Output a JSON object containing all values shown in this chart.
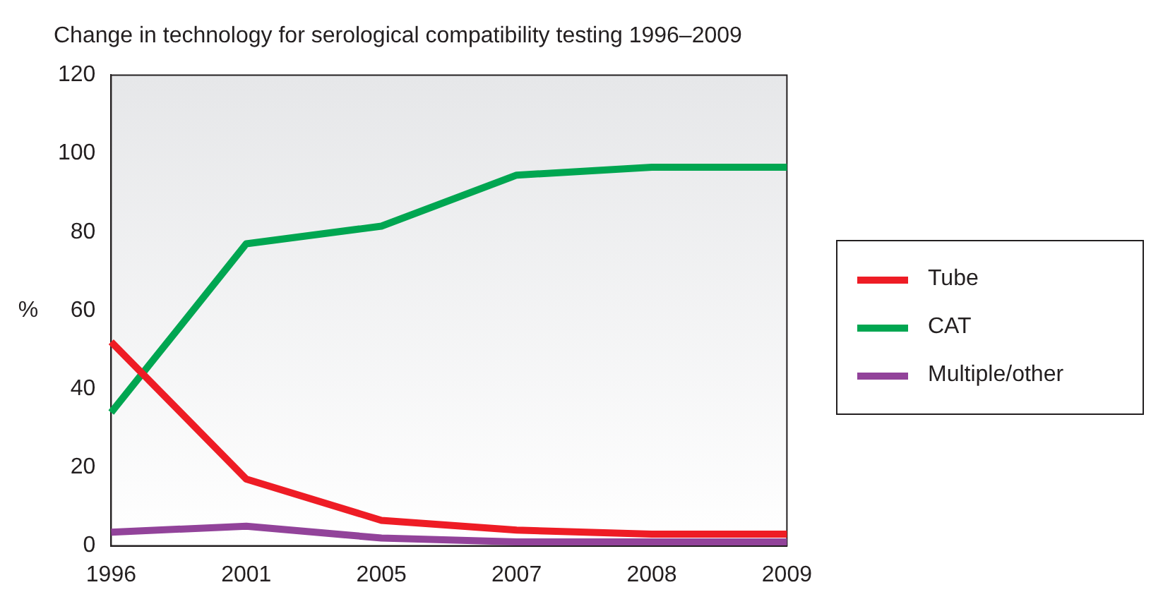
{
  "chart_data": {
    "type": "line",
    "title": "Change in technology for serological compatibility testing 1996–2009",
    "ylabel": "%",
    "categories": [
      "1996",
      "2001",
      "2005",
      "2007",
      "2008",
      "2009"
    ],
    "series": [
      {
        "name": "Tube",
        "color": "#ee1c25",
        "values": [
          52,
          17,
          6.5,
          4,
          3,
          3
        ]
      },
      {
        "name": "CAT",
        "color": "#00a651",
        "values": [
          34,
          77,
          81.5,
          94.5,
          96.5,
          96.5
        ]
      },
      {
        "name": "Multiple/other",
        "color": "#92439a",
        "values": [
          3.5,
          5,
          2,
          1,
          1,
          1
        ]
      }
    ],
    "ylim": [
      0,
      120
    ],
    "yticks": [
      0,
      20,
      40,
      60,
      80,
      100,
      120
    ],
    "grid": false,
    "legend": "right",
    "marker": "none",
    "line_style": "solid"
  }
}
